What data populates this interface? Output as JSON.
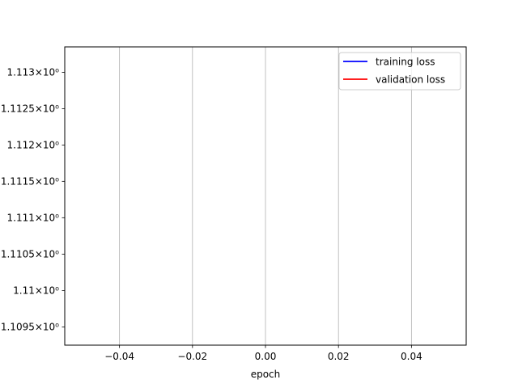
{
  "chart_data": {
    "type": "line",
    "title": "",
    "xlabel": "epoch",
    "ylabel": "",
    "xlim": [
      -0.055,
      0.055
    ],
    "ylim": [
      1.10925,
      1.11335
    ],
    "yscale": "log",
    "grid": "x-only",
    "x_ticks": [
      {
        "value": -0.04,
        "label": "−0.04"
      },
      {
        "value": -0.02,
        "label": "−0.02"
      },
      {
        "value": 0.0,
        "label": "0.00"
      },
      {
        "value": 0.02,
        "label": "0.02"
      },
      {
        "value": 0.04,
        "label": "0.04"
      }
    ],
    "y_ticks": [
      {
        "value": 1.113,
        "label": "1.113",
        "suffix": "×10⁰"
      },
      {
        "value": 1.1125,
        "label": "1.1125",
        "suffix": "×10⁰"
      },
      {
        "value": 1.112,
        "label": "1.112",
        "suffix": "×10⁰"
      },
      {
        "value": 1.1115,
        "label": "1.1115",
        "suffix": "×10⁰"
      },
      {
        "value": 1.111,
        "label": "1.111",
        "suffix": "×10⁰"
      },
      {
        "value": 1.1105,
        "label": "1.1105",
        "suffix": "×10⁰"
      },
      {
        "value": 1.11,
        "label": "1.11",
        "suffix": "×10⁰"
      },
      {
        "value": 1.1095,
        "label": "1.1095",
        "suffix": "×10⁰"
      }
    ],
    "legend_position": "top-right",
    "series": [
      {
        "name": "training loss",
        "color": "#0000ff",
        "x": [],
        "y": []
      },
      {
        "name": "validation loss",
        "color": "#ff0000",
        "x": [],
        "y": []
      }
    ]
  }
}
